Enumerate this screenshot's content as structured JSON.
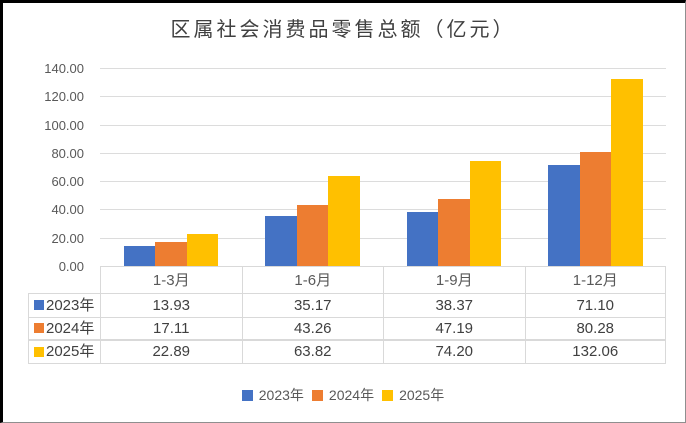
{
  "chart": {
    "title": "区属社会消费品零售总额（亿元）"
  },
  "chart_data": {
    "type": "bar",
    "title": "区属社会消费品零售总额（亿元）",
    "categories": [
      "1-3月",
      "1-6月",
      "1-9月",
      "1-12月"
    ],
    "series": [
      {
        "name": "2023年",
        "color": "#4472C4",
        "values": [
          13.93,
          35.17,
          38.37,
          71.1
        ]
      },
      {
        "name": "2024年",
        "color": "#ED7D31",
        "values": [
          17.11,
          43.26,
          47.19,
          80.28
        ]
      },
      {
        "name": "2025年",
        "color": "#FFC000",
        "values": [
          22.89,
          63.82,
          74.2,
          132.06
        ]
      }
    ],
    "xlabel": "",
    "ylabel": "",
    "ylim": [
      0,
      140
    ],
    "ytick_step": 20,
    "yticks": [
      "140.00",
      "120.00",
      "100.00",
      "80.00",
      "60.00",
      "40.00",
      "20.00",
      "0.00"
    ],
    "grid": true,
    "legend_position": "bottom",
    "data_table_shown": true
  },
  "table": {
    "col_headers": [
      "1-3月",
      "1-6月",
      "1-9月",
      "1-12月"
    ],
    "row_headers": [
      "2023年",
      "2024年",
      "2025年"
    ],
    "cells": [
      [
        "13.93",
        "35.17",
        "38.37",
        "71.10"
      ],
      [
        "17.11",
        "43.26",
        "47.19",
        "80.28"
      ],
      [
        "22.89",
        "63.82",
        "74.20",
        "132.06"
      ]
    ]
  },
  "legend": {
    "items": [
      {
        "label": "2023年",
        "color": "#4472C4"
      },
      {
        "label": "2024年",
        "color": "#ED7D31"
      },
      {
        "label": "2025年",
        "color": "#FFC000"
      }
    ]
  },
  "colors": {
    "series_blue": "#4472C4",
    "series_orange": "#ED7D31",
    "series_gold": "#FFC000",
    "gridline": "#DCDCDC",
    "table_border": "#D9D9D9",
    "axis_text": "#595959",
    "value_text": "#404040",
    "title_text": "#404040",
    "background": "#FFFFFF",
    "frame_border": "#000000"
  }
}
